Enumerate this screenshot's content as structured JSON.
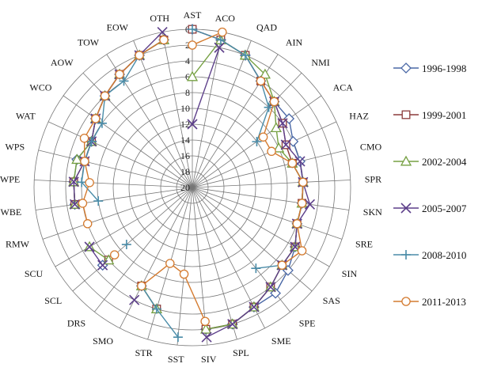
{
  "chart_data": {
    "type": "radar",
    "title": "",
    "categories": [
      "AST",
      "ACO",
      "QAD",
      "AIN",
      "NMI",
      "ACA",
      "HAZ",
      "CMO",
      "SPR",
      "SKN",
      "SRE",
      "SIN",
      "SAS",
      "SPE",
      "SME",
      "SPL",
      "SIV",
      "SST",
      "STR",
      "SMO",
      "DRS",
      "SCL",
      "SCU",
      "RMW",
      "WBE",
      "WPE",
      "WPS",
      "WAT",
      "WCO",
      "AOW",
      "TOW",
      "EOW",
      "OTH"
    ],
    "radial_axis": {
      "min": 0,
      "max": 20,
      "ticks": [
        0,
        2,
        4,
        6,
        8,
        10,
        12,
        14,
        16,
        18,
        20
      ],
      "reversed": true,
      "note": "rank 0 at outer ring, 20 at center"
    },
    "grid": true,
    "legend_position": "right",
    "series": [
      {
        "name": "1996-1998",
        "color": "#4a68a6",
        "marker": "diamond",
        "values": [
          0,
          1,
          2,
          4,
          5,
          5,
          6,
          6,
          6,
          6,
          6,
          5,
          4,
          3,
          3,
          2,
          2,
          null,
          null,
          6,
          null,
          5,
          null,
          null,
          5,
          5,
          5,
          6,
          5,
          4,
          3,
          2,
          1
        ]
      },
      {
        "name": "1999-2001",
        "color": "#8b3a3a",
        "marker": "square",
        "values": [
          0,
          1,
          2,
          4,
          5,
          6,
          7,
          7,
          6,
          6,
          6,
          5,
          5,
          4,
          3,
          2,
          2,
          null,
          4,
          6,
          null,
          6,
          null,
          null,
          5,
          5,
          6,
          6,
          5,
          4,
          3,
          2,
          1
        ]
      },
      {
        "name": "2002-2004",
        "color": "#76a043",
        "marker": "triangle",
        "values": [
          6,
          1,
          2,
          3,
          5,
          7,
          8,
          7,
          6,
          6,
          6,
          5,
          5,
          4,
          3,
          2,
          2,
          null,
          4,
          6,
          null,
          6,
          5,
          null,
          5,
          5,
          5,
          6,
          5,
          4,
          3,
          2,
          1
        ]
      },
      {
        "name": "2005-2007",
        "color": "#5d3f8a",
        "marker": "x",
        "values": [
          12,
          2,
          null,
          null,
          5,
          6,
          7,
          6,
          6,
          5,
          6,
          5,
          5,
          4,
          3,
          2,
          1,
          null,
          null,
          4,
          null,
          5,
          5,
          null,
          5,
          5,
          6,
          6,
          5,
          4,
          3,
          2,
          0
        ]
      },
      {
        "name": "2008-2010",
        "color": "#4a8ca8",
        "marker": "plus",
        "values": [
          0,
          1,
          2,
          4,
          6,
          10,
          null,
          7,
          6,
          6,
          6,
          null,
          5,
          7,
          null,
          null,
          null,
          1,
          4,
          6,
          null,
          9,
          null,
          null,
          8,
          6,
          6,
          6,
          6,
          4,
          4,
          2,
          1
        ]
      },
      {
        "name": "2011-2013",
        "color": "#d47b30",
        "marker": "circle",
        "values": [
          2,
          0,
          null,
          4,
          5,
          9,
          9,
          7,
          6,
          6,
          6,
          4,
          5,
          null,
          null,
          null,
          3,
          9,
          10,
          6,
          null,
          7,
          null,
          6,
          6,
          7,
          6,
          5,
          5,
          4,
          3,
          2,
          1
        ]
      }
    ]
  }
}
